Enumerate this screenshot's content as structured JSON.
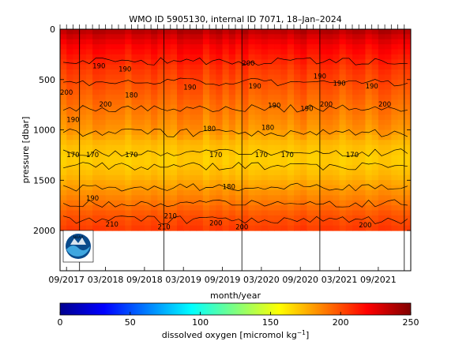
{
  "chart_data": [
    {
      "type": "heatmap",
      "title": "WMO ID 5905130, internal ID 7071, 18–Jan–2024",
      "xlabel": "month/year",
      "ylabel": "pressure [dbar]",
      "x_tick_labels": [
        "09/2017",
        "03/2018",
        "09/2018",
        "03/2019",
        "09/2019",
        "03/2020",
        "09/2020",
        "03/2021",
        "09/2021"
      ],
      "x_tick_dates": [
        "2017-09",
        "2018-03",
        "2018-09",
        "2019-03",
        "2019-09",
        "2020-03",
        "2020-09",
        "2021-03",
        "2021-09"
      ],
      "x_range": [
        "2017-08",
        "2022-02"
      ],
      "y_tick_values": [
        0,
        500,
        1000,
        1500,
        2000
      ],
      "y_tick_labels": [
        "0",
        "500",
        "1000",
        "1500",
        "2000"
      ],
      "ylim": [
        2400,
        0
      ],
      "y_reversed": true,
      "data_bottom_pressure": 2000,
      "grid": false,
      "contour_levels": [
        170,
        180,
        190,
        200,
        210
      ],
      "contour_labels": [
        {
          "date": "2017-09",
          "pressure": 650,
          "text": "200"
        },
        {
          "date": "2017-10",
          "pressure": 920,
          "text": "190"
        },
        {
          "date": "2017-10",
          "pressure": 1270,
          "text": "170"
        },
        {
          "date": "2018-01",
          "pressure": 1270,
          "text": "170"
        },
        {
          "date": "2018-01",
          "pressure": 1700,
          "text": "190"
        },
        {
          "date": "2018-02",
          "pressure": 390,
          "text": "190"
        },
        {
          "date": "2018-03",
          "pressure": 770,
          "text": "200"
        },
        {
          "date": "2018-04",
          "pressure": 1960,
          "text": "210"
        },
        {
          "date": "2018-06",
          "pressure": 420,
          "text": "190"
        },
        {
          "date": "2018-07",
          "pressure": 680,
          "text": "180"
        },
        {
          "date": "2018-07",
          "pressure": 1270,
          "text": "170"
        },
        {
          "date": "2018-12",
          "pressure": 1990,
          "text": "210"
        },
        {
          "date": "2019-01",
          "pressure": 1880,
          "text": "210"
        },
        {
          "date": "2019-04",
          "pressure": 600,
          "text": "190"
        },
        {
          "date": "2019-07",
          "pressure": 1010,
          "text": "180"
        },
        {
          "date": "2019-08",
          "pressure": 1270,
          "text": "170"
        },
        {
          "date": "2019-08",
          "pressure": 1950,
          "text": "200"
        },
        {
          "date": "2019-10",
          "pressure": 1590,
          "text": "180"
        },
        {
          "date": "2019-12",
          "pressure": 1990,
          "text": "200"
        },
        {
          "date": "2020-01",
          "pressure": 360,
          "text": "200"
        },
        {
          "date": "2020-02",
          "pressure": 590,
          "text": "190"
        },
        {
          "date": "2020-03",
          "pressure": 1270,
          "text": "170"
        },
        {
          "date": "2020-04",
          "pressure": 1000,
          "text": "180"
        },
        {
          "date": "2020-05",
          "pressure": 780,
          "text": "190"
        },
        {
          "date": "2020-07",
          "pressure": 1270,
          "text": "170"
        },
        {
          "date": "2020-10",
          "pressure": 810,
          "text": "190"
        },
        {
          "date": "2020-12",
          "pressure": 490,
          "text": "190"
        },
        {
          "date": "2021-01",
          "pressure": 770,
          "text": "200"
        },
        {
          "date": "2021-03",
          "pressure": 560,
          "text": "190"
        },
        {
          "date": "2021-05",
          "pressure": 1270,
          "text": "170"
        },
        {
          "date": "2021-07",
          "pressure": 1970,
          "text": "200"
        },
        {
          "date": "2021-08",
          "pressure": 590,
          "text": "190"
        },
        {
          "date": "2021-10",
          "pressure": 770,
          "text": "200"
        }
      ],
      "profile_dates": [
        "2017-08",
        "2017-09",
        "2017-10",
        "2017-11",
        "2017-12",
        "2018-01",
        "2018-02",
        "2018-03",
        "2018-04",
        "2018-05",
        "2018-06",
        "2018-07",
        "2018-08",
        "2018-09",
        "2018-10",
        "2018-11",
        "2018-12",
        "2019-01",
        "2019-02",
        "2019-03",
        "2019-04",
        "2019-05",
        "2019-06",
        "2019-07",
        "2019-08",
        "2019-09",
        "2019-10",
        "2019-11",
        "2019-12",
        "2020-01",
        "2020-02",
        "2020-03",
        "2020-04",
        "2020-05",
        "2020-06",
        "2020-07",
        "2020-08",
        "2020-09",
        "2020-10",
        "2020-11",
        "2020-12",
        "2021-01",
        "2021-02",
        "2021-03",
        "2021-04",
        "2021-05",
        "2021-06",
        "2021-07",
        "2021-08",
        "2021-09",
        "2021-10",
        "2021-11",
        "2021-12",
        "2022-01"
      ],
      "vertical_markers": [
        "2017-11",
        "2018-12",
        "2019-12",
        "2020-12",
        "2022-01"
      ],
      "value_profile": [
        {
          "pressure": 0,
          "value": 238
        },
        {
          "pressure": 150,
          "value": 220
        },
        {
          "pressure": 400,
          "value": 205
        },
        {
          "pressure": 700,
          "value": 193
        },
        {
          "pressure": 1000,
          "value": 182
        },
        {
          "pressure": 1150,
          "value": 172
        },
        {
          "pressure": 1300,
          "value": 168
        },
        {
          "pressure": 1450,
          "value": 173
        },
        {
          "pressure": 1700,
          "value": 188
        },
        {
          "pressure": 1850,
          "value": 198
        },
        {
          "pressure": 2000,
          "value": 205
        }
      ],
      "colorbar": {
        "label": "dissolved oxygen [micromol kg",
        "label_exponent": "−1",
        "label_close": "]",
        "min": 0,
        "max": 250,
        "tick_values": [
          0,
          50,
          100,
          150,
          200,
          250
        ],
        "tick_labels": [
          "0",
          "50",
          "100",
          "150",
          "200",
          "250"
        ],
        "colormap": "jet"
      }
    }
  ],
  "logo": {
    "text": "NOAA"
  }
}
